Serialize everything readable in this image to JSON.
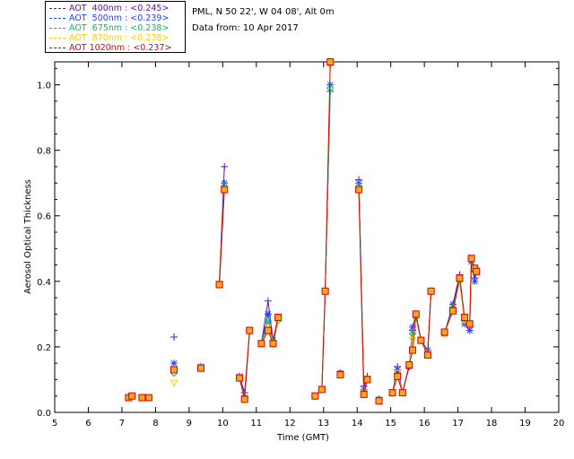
{
  "legend": [
    {
      "label": "AOT  400nm : <0.245>",
      "color": "#6a0dad"
    },
    {
      "label": "AOT  500nm : <0.239>",
      "color": "#1f3fff"
    },
    {
      "label": "AOT  675nm : <0.238>",
      "color": "#00c060"
    },
    {
      "label": "AOT  870nm : <0.238>",
      "color": "#ffd000"
    },
    {
      "label": "AOT 1020nm : <0.237>",
      "color": "#e00000"
    }
  ],
  "info": {
    "location": "PML, N 50 22', W 04 08', Alt 0m",
    "date": "Data from: 10 Apr 2017"
  },
  "chart_data": {
    "type": "line",
    "xlabel": "Time (GMT)",
    "ylabel": "Aerosol Optical Thickness",
    "xlim": [
      5,
      20
    ],
    "ylim": [
      0,
      1.07
    ],
    "xticks": [
      "5",
      "6",
      "7",
      "8",
      "9",
      "10",
      "11",
      "12",
      "13",
      "14",
      "15",
      "16",
      "17",
      "18",
      "19",
      "20"
    ],
    "yticks": [
      "0.0",
      "0.2",
      "0.4",
      "0.6",
      "0.8",
      "1.0"
    ],
    "x": [
      7.2,
      7.3,
      7.6,
      7.8,
      8.55,
      9.35,
      9.9,
      10.05,
      10.5,
      10.65,
      10.8,
      11.15,
      11.35,
      11.5,
      11.65,
      12.75,
      12.95,
      13.05,
      13.2,
      13.5,
      14.05,
      14.2,
      14.3,
      14.65,
      15.05,
      15.2,
      15.35,
      15.55,
      15.65,
      15.75,
      15.9,
      16.1,
      16.2,
      16.6,
      16.85,
      17.05,
      17.2,
      17.35,
      17.4,
      17.5,
      17.55
    ],
    "segments": [
      [
        0,
        1
      ],
      [
        2,
        3
      ],
      [
        4
      ],
      [
        5
      ],
      [
        6,
        7
      ],
      [
        8,
        9,
        10
      ],
      [
        11,
        12,
        13,
        14
      ],
      [
        15,
        16,
        17,
        18
      ],
      [
        19
      ],
      [
        20,
        21,
        22
      ],
      [
        23
      ],
      [
        24,
        25,
        26,
        27,
        28,
        29,
        30,
        31,
        32
      ],
      [
        33,
        34,
        35,
        36,
        37,
        38,
        39,
        40
      ]
    ],
    "series": [
      {
        "name": "AOT  400nm",
        "marker": "plus",
        "values": [
          0.045,
          0.05,
          0.045,
          0.045,
          0.23,
          0.14,
          0.4,
          0.75,
          0.11,
          0.06,
          0.25,
          0.21,
          0.34,
          0.22,
          0.29,
          0.05,
          0.07,
          0.37,
          0.98,
          0.12,
          0.71,
          0.08,
          0.11,
          0.04,
          0.06,
          0.14,
          0.06,
          0.14,
          0.25,
          0.3,
          0.22,
          0.19,
          0.37,
          0.24,
          0.33,
          0.42,
          0.28,
          0.26,
          0.46,
          0.41,
          0.44
        ]
      },
      {
        "name": "AOT  500nm",
        "marker": "star",
        "values": [
          0.045,
          0.05,
          0.045,
          0.045,
          0.15,
          0.14,
          0.39,
          0.7,
          0.11,
          0.045,
          0.25,
          0.21,
          0.3,
          0.22,
          0.29,
          0.05,
          0.07,
          0.37,
          1.0,
          0.12,
          0.7,
          0.07,
          0.1,
          0.04,
          0.06,
          0.13,
          0.06,
          0.14,
          0.26,
          0.3,
          0.22,
          0.19,
          0.37,
          0.24,
          0.33,
          0.41,
          0.27,
          0.25,
          0.46,
          0.4,
          0.43
        ]
      },
      {
        "name": "AOT  675nm",
        "marker": "diamond",
        "values": [
          0.045,
          0.05,
          0.045,
          0.045,
          0.12,
          0.135,
          0.39,
          0.69,
          0.105,
          0.045,
          0.25,
          0.21,
          0.28,
          0.215,
          0.28,
          0.05,
          0.07,
          0.37,
          0.99,
          0.12,
          0.69,
          0.065,
          0.1,
          0.04,
          0.06,
          0.12,
          0.06,
          0.145,
          0.24,
          0.29,
          0.22,
          0.18,
          0.37,
          0.24,
          0.32,
          0.4,
          0.28,
          0.27,
          0.47,
          0.43,
          0.43
        ]
      },
      {
        "name": "AOT  870nm",
        "marker": "triangle",
        "values": [
          0.045,
          0.05,
          0.045,
          0.045,
          0.09,
          0.135,
          0.39,
          0.68,
          0.105,
          0.04,
          0.25,
          0.21,
          0.26,
          0.21,
          0.28,
          0.05,
          0.07,
          0.37,
          1.06,
          0.115,
          0.68,
          0.06,
          0.1,
          0.035,
          0.06,
          0.12,
          0.06,
          0.145,
          0.22,
          0.3,
          0.22,
          0.18,
          0.37,
          0.24,
          0.31,
          0.4,
          0.28,
          0.27,
          0.47,
          0.43,
          0.43
        ]
      },
      {
        "name": "AOT 1020nm",
        "marker": "square",
        "values": [
          0.045,
          0.05,
          0.045,
          0.045,
          0.13,
          0.135,
          0.39,
          0.68,
          0.105,
          0.04,
          0.25,
          0.21,
          0.25,
          0.21,
          0.29,
          0.05,
          0.07,
          0.37,
          1.07,
          0.115,
          0.68,
          0.055,
          0.1,
          0.035,
          0.06,
          0.11,
          0.06,
          0.145,
          0.19,
          0.3,
          0.22,
          0.175,
          0.37,
          0.245,
          0.31,
          0.41,
          0.29,
          0.27,
          0.47,
          0.44,
          0.43
        ]
      }
    ]
  }
}
